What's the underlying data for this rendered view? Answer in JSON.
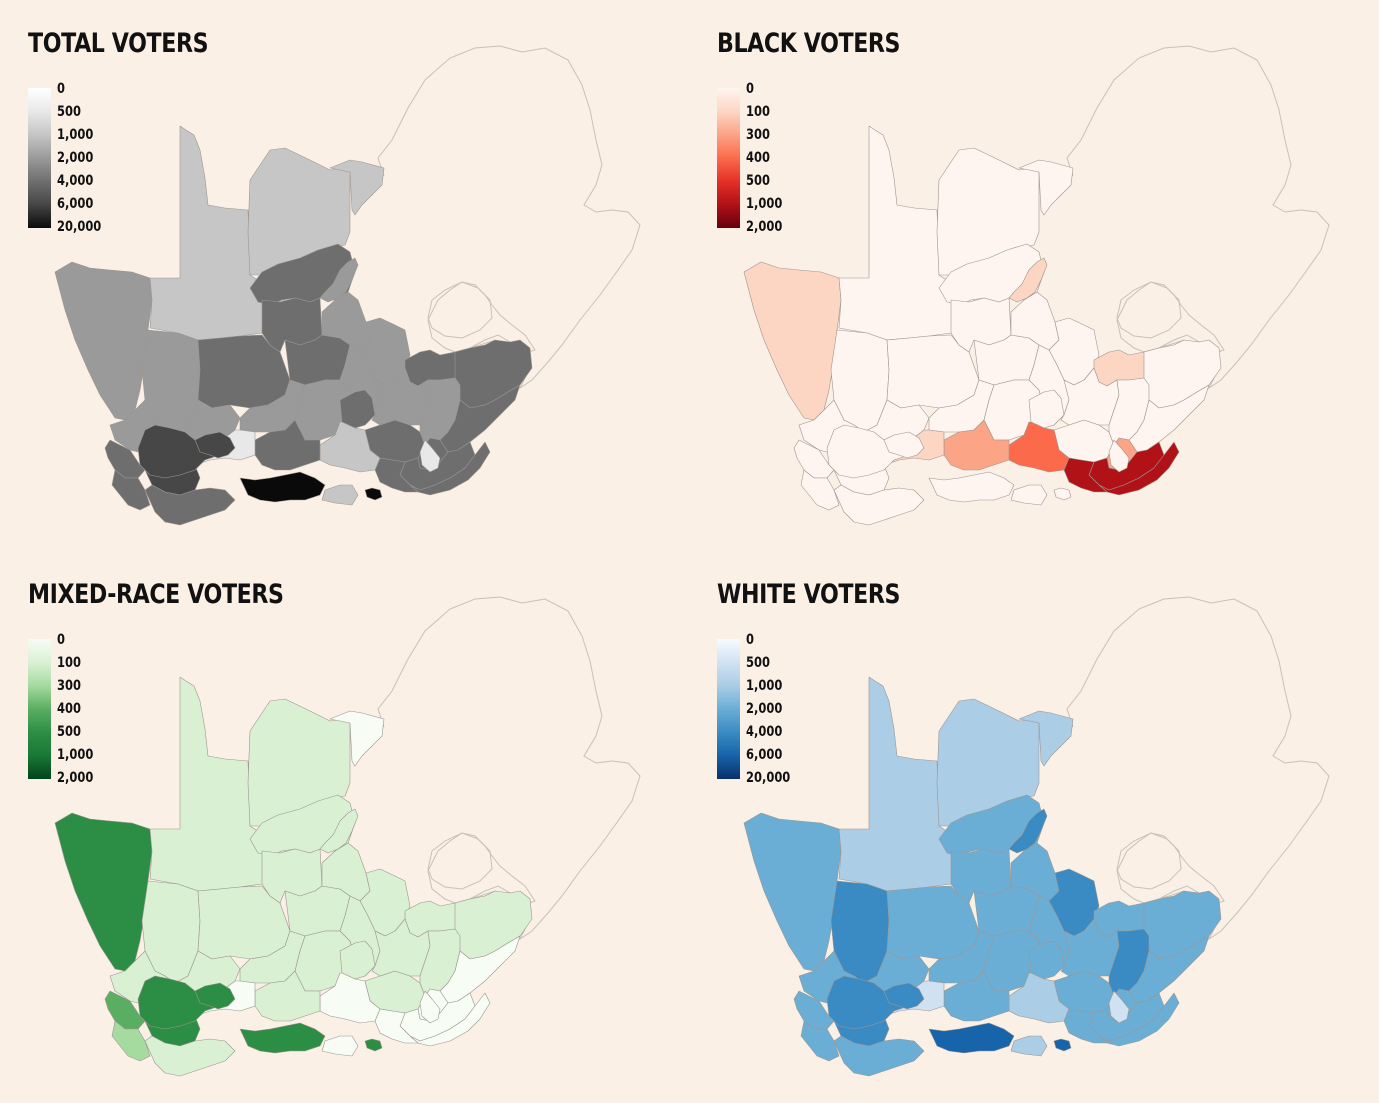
{
  "panels": [
    {
      "id": "total",
      "title": "TOTAL VOTERS",
      "legend": {
        "labels": [
          "0",
          "500",
          "1,000",
          "2,000",
          "4,000",
          "6,000",
          "20,000"
        ],
        "colors": [
          "#ffffff",
          "#e8e8e8",
          "#c6c6c6",
          "#9a9a9a",
          "#6e6e6e",
          "#474747",
          "#0a0a0a"
        ]
      },
      "regions": [
        3,
        2,
        2,
        2,
        4,
        3,
        3,
        4,
        4,
        4,
        3,
        3,
        4,
        4,
        3,
        3,
        3,
        3,
        4,
        4,
        3,
        3,
        4,
        4,
        4,
        4,
        4,
        2,
        4,
        1,
        5,
        5,
        5,
        4,
        4,
        4,
        6,
        6,
        2,
        1
      ]
    },
    {
      "id": "black",
      "title": "BLACK VOTERS",
      "legend": {
        "labels": [
          "0",
          "100",
          "300",
          "400",
          "500",
          "1,000",
          "2,000"
        ],
        "colors": [
          "#fff5f0",
          "#fdd5c3",
          "#fca486",
          "#fb6b4b",
          "#e32f27",
          "#b11218",
          "#67000d"
        ]
      },
      "regions": [
        1,
        0,
        0,
        0,
        0,
        1,
        0,
        0,
        0,
        0,
        0,
        0,
        1,
        0,
        0,
        0,
        0,
        0,
        0,
        0,
        0,
        0,
        0,
        2,
        5,
        5,
        5,
        3,
        2,
        1,
        0,
        0,
        0,
        0,
        0,
        0,
        0,
        0,
        0,
        0
      ]
    },
    {
      "id": "mixed",
      "title": "MIXED-RACE VOTERS",
      "legend": {
        "labels": [
          "0",
          "100",
          "300",
          "400",
          "500",
          "1,000",
          "2,000"
        ],
        "colors": [
          "#f7fcf5",
          "#d9f0d3",
          "#a6dba0",
          "#5aae61",
          "#2c8e45",
          "#1b7837",
          "#00441b"
        ]
      },
      "regions": [
        4,
        1,
        1,
        0,
        1,
        1,
        1,
        1,
        1,
        1,
        1,
        1,
        1,
        1,
        1,
        1,
        1,
        1,
        1,
        1,
        1,
        1,
        0,
        0,
        0,
        0,
        0,
        0,
        1,
        0,
        4,
        4,
        4,
        3,
        2,
        1,
        4,
        4,
        0,
        0
      ]
    },
    {
      "id": "white",
      "title": "WHITE VOTERS",
      "legend": {
        "labels": [
          "0",
          "500",
          "1,000",
          "2,000",
          "4,000",
          "6,000",
          "20,000"
        ],
        "colors": [
          "#f7fbff",
          "#d0e1f2",
          "#abcde6",
          "#6aaed6",
          "#3a8ac3",
          "#1864aa",
          "#08306b"
        ]
      },
      "regions": [
        3,
        2,
        2,
        2,
        3,
        4,
        4,
        3,
        3,
        3,
        3,
        4,
        3,
        3,
        3,
        3,
        3,
        3,
        3,
        3,
        3,
        4,
        3,
        3,
        3,
        3,
        3,
        2,
        3,
        1,
        4,
        4,
        4,
        3,
        3,
        3,
        5,
        5,
        2,
        1
      ]
    }
  ]
}
